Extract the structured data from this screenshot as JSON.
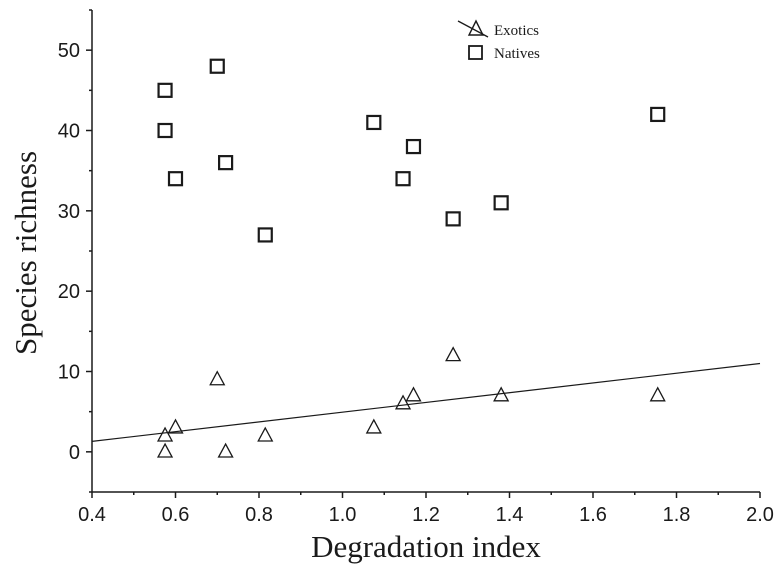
{
  "chart_data": {
    "type": "scatter",
    "xlabel": "Degradation index",
    "ylabel": "Species richness",
    "xlim": [
      0.4,
      2.0
    ],
    "ylim": [
      -5,
      55
    ],
    "x_ticks": [
      "0.4",
      "0.6",
      "0.8",
      "1.0",
      "1.2",
      "1.4",
      "1.6",
      "1.8",
      "2.0"
    ],
    "y_ticks": [
      "0",
      "10",
      "20",
      "30",
      "40",
      "50"
    ],
    "grid": false,
    "legend_position": "top-right",
    "series": [
      {
        "name": "Exotics",
        "marker": "triangle",
        "trendline": {
          "x": [
            0.4,
            2.0
          ],
          "y": [
            1.3,
            11.0
          ]
        },
        "points": [
          {
            "x": 0.575,
            "y": 2
          },
          {
            "x": 0.575,
            "y": 0
          },
          {
            "x": 0.6,
            "y": 3
          },
          {
            "x": 0.7,
            "y": 9
          },
          {
            "x": 0.72,
            "y": 0
          },
          {
            "x": 0.815,
            "y": 2
          },
          {
            "x": 1.075,
            "y": 3
          },
          {
            "x": 1.145,
            "y": 6
          },
          {
            "x": 1.17,
            "y": 7
          },
          {
            "x": 1.265,
            "y": 12
          },
          {
            "x": 1.38,
            "y": 7
          },
          {
            "x": 1.755,
            "y": 7
          }
        ]
      },
      {
        "name": "Natives",
        "marker": "square",
        "points": [
          {
            "x": 0.575,
            "y": 45
          },
          {
            "x": 0.575,
            "y": 40
          },
          {
            "x": 0.6,
            "y": 34
          },
          {
            "x": 0.7,
            "y": 48
          },
          {
            "x": 0.72,
            "y": 36
          },
          {
            "x": 0.815,
            "y": 27
          },
          {
            "x": 1.075,
            "y": 41
          },
          {
            "x": 1.145,
            "y": 34
          },
          {
            "x": 1.17,
            "y": 38
          },
          {
            "x": 1.265,
            "y": 29
          },
          {
            "x": 1.38,
            "y": 31
          },
          {
            "x": 1.755,
            "y": 42
          }
        ]
      }
    ]
  }
}
